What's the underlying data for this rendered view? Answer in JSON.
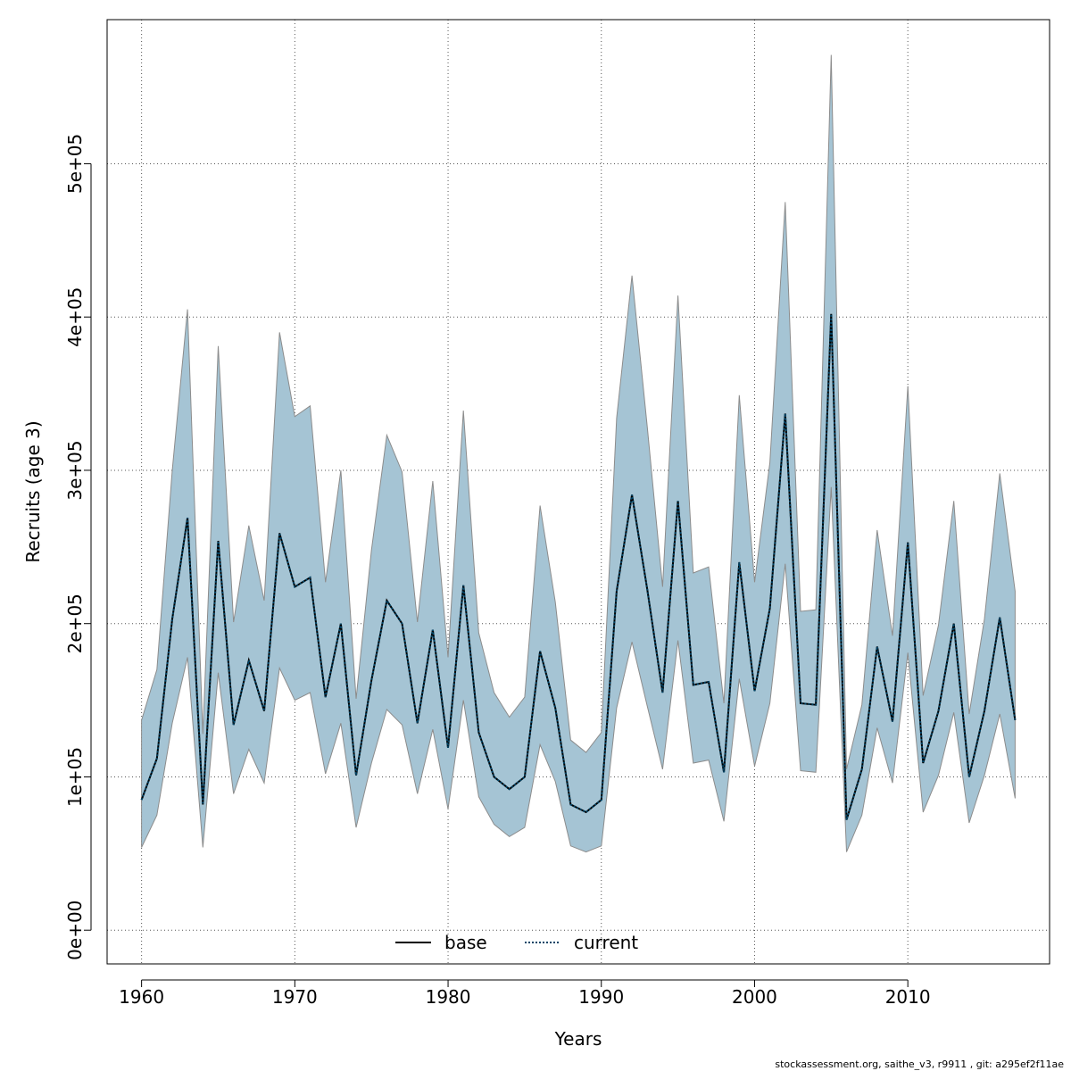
{
  "chart_data": {
    "type": "line",
    "title": "",
    "xlabel": "Years",
    "ylabel": "Recruits (age 3)",
    "xlim": [
      1957.75,
      2019.25
    ],
    "ylim": [
      -22000,
      594000
    ],
    "x_ticks": [
      1960,
      1970,
      1980,
      1990,
      2000,
      2010
    ],
    "x_tick_labels": [
      "1960",
      "1970",
      "1980",
      "1990",
      "2000",
      "2010"
    ],
    "y_ticks": [
      0,
      100000,
      200000,
      300000,
      400000,
      500000
    ],
    "y_tick_labels": [
      "0e+00",
      "1e+05",
      "2e+05",
      "3e+05",
      "4e+05",
      "5e+05"
    ],
    "grid": true,
    "legend_position": "bottom-center",
    "colors": {
      "band": "#a5c4d4",
      "band_edge": "#8c8c8c",
      "base": "#000000",
      "current": "#004466"
    },
    "x": [
      1960,
      1961,
      1962,
      1963,
      1964,
      1965,
      1966,
      1967,
      1968,
      1969,
      1970,
      1971,
      1972,
      1973,
      1974,
      1975,
      1976,
      1977,
      1978,
      1979,
      1980,
      1981,
      1982,
      1983,
      1984,
      1985,
      1986,
      1987,
      1988,
      1989,
      1990,
      1991,
      1992,
      1993,
      1994,
      1995,
      1996,
      1997,
      1998,
      1999,
      2000,
      2001,
      2002,
      2003,
      2004,
      2005,
      2006,
      2007,
      2008,
      2009,
      2010,
      2011,
      2012,
      2013,
      2014,
      2015,
      2016,
      2017
    ],
    "series": [
      {
        "name": "base",
        "line_style": "solid",
        "values": [
          85000,
          112000,
          203000,
          269000,
          82000,
          254000,
          134000,
          176000,
          143000,
          259000,
          224000,
          230000,
          152000,
          200000,
          101000,
          163000,
          215000,
          200000,
          135000,
          196000,
          119000,
          225000,
          129000,
          100000,
          92000,
          100000,
          182000,
          145000,
          82000,
          77000,
          85000,
          221000,
          284000,
          222000,
          155000,
          280000,
          160000,
          162000,
          103000,
          240000,
          156000,
          210000,
          337000,
          148000,
          147000,
          402000,
          72000,
          105000,
          185000,
          136000,
          253000,
          109000,
          143000,
          200000,
          100000,
          143000,
          204000,
          137000
        ]
      },
      {
        "name": "current",
        "line_style": "dotted",
        "values": [
          85000,
          112000,
          203000,
          269000,
          82000,
          254000,
          134000,
          176000,
          143000,
          259000,
          224000,
          230000,
          152000,
          200000,
          101000,
          163000,
          215000,
          200000,
          135000,
          196000,
          119000,
          225000,
          129000,
          100000,
          92000,
          100000,
          182000,
          145000,
          82000,
          77000,
          85000,
          221000,
          284000,
          222000,
          155000,
          280000,
          160000,
          162000,
          103000,
          240000,
          156000,
          210000,
          337000,
          148000,
          147000,
          402000,
          72000,
          105000,
          185000,
          136000,
          253000,
          109000,
          143000,
          200000,
          100000,
          143000,
          204000,
          137000
        ]
      }
    ],
    "band": {
      "lower": [
        54000,
        75000,
        135000,
        178000,
        54000,
        168000,
        89000,
        118000,
        96000,
        171000,
        150000,
        155000,
        102000,
        135000,
        67000,
        109000,
        144000,
        134000,
        89000,
        131000,
        79000,
        150000,
        87000,
        69000,
        61000,
        67000,
        121000,
        97000,
        55000,
        51000,
        55000,
        145000,
        188000,
        146000,
        105000,
        189000,
        109000,
        111000,
        71000,
        164000,
        107000,
        148000,
        239000,
        104000,
        103000,
        289000,
        51000,
        75000,
        132000,
        96000,
        181000,
        77000,
        101000,
        142000,
        70000,
        101000,
        141000,
        86000
      ],
      "upper": [
        137000,
        170000,
        300000,
        405000,
        128000,
        381000,
        201000,
        264000,
        215000,
        390000,
        335000,
        342000,
        227000,
        300000,
        151000,
        248000,
        323000,
        299000,
        201000,
        293000,
        178000,
        339000,
        194000,
        155000,
        139000,
        152000,
        277000,
        214000,
        124000,
        116000,
        129000,
        334000,
        427000,
        328000,
        224000,
        414000,
        233000,
        237000,
        148000,
        349000,
        227000,
        305000,
        475000,
        208000,
        209000,
        571000,
        105000,
        147000,
        261000,
        192000,
        355000,
        153000,
        199000,
        280000,
        141000,
        203000,
        298000,
        221000
      ]
    }
  },
  "footer": {
    "text": "stockassessment.org, saithe_v3, r9911 , git: a295ef2f11ae"
  }
}
